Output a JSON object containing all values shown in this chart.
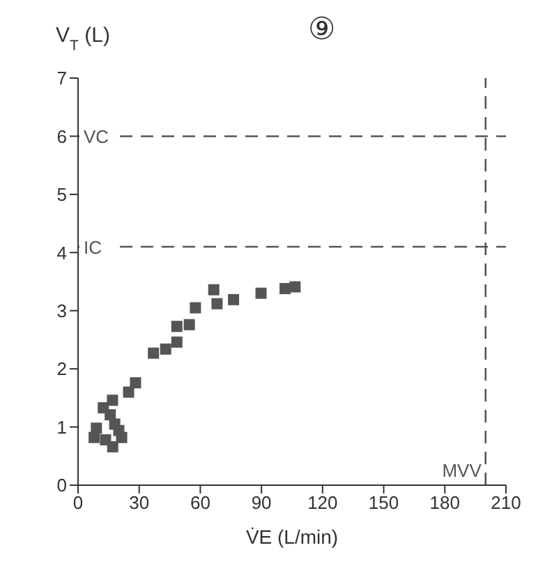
{
  "chart_data": {
    "type": "scatter",
    "title": "⑨",
    "xlabel": "V̇E (L/min)",
    "ylabel": "V$_{T}$ (L)",
    "x": [
      7.9,
      9,
      13.5,
      12.4,
      16.9,
      15.8,
      18,
      20,
      17,
      21.4,
      24.8,
      28.2,
      37,
      43,
      48.5,
      48.5,
      54.6,
      57.6,
      66.6,
      68.2,
      76.3,
      89.8,
      101.6,
      106.5
    ],
    "series": [
      {
        "color": "#555555",
        "values": [
          0.82,
          0.98,
          0.78,
          1.33,
          1.46,
          1.21,
          1.05,
          0.94,
          0.66,
          0.82,
          1.6,
          1.76,
          2.27,
          2.34,
          2.46,
          2.73,
          2.76,
          3.05,
          3.36,
          3.12,
          3.19,
          3.3,
          3.38,
          3.41
        ]
      }
    ],
    "xlim": [
      0,
      210
    ],
    "ylim": [
      0,
      7
    ],
    "xticks": [
      0,
      30,
      60,
      90,
      120,
      150,
      180,
      210
    ],
    "yticks": [
      0,
      1,
      2,
      3,
      4,
      5,
      6,
      7
    ],
    "marker": "square",
    "grid": false,
    "legend": false,
    "ref_lines": [
      {
        "axis": "y",
        "value": 6,
        "label": "VC",
        "line_style": "dashed",
        "color": "#555555"
      },
      {
        "axis": "y",
        "value": 4.1,
        "label": "IC",
        "line_style": "dashed",
        "color": "#555555"
      },
      {
        "axis": "x",
        "value": 200,
        "label": "MVV",
        "line_style": "dashed",
        "color": "#555555"
      }
    ]
  }
}
